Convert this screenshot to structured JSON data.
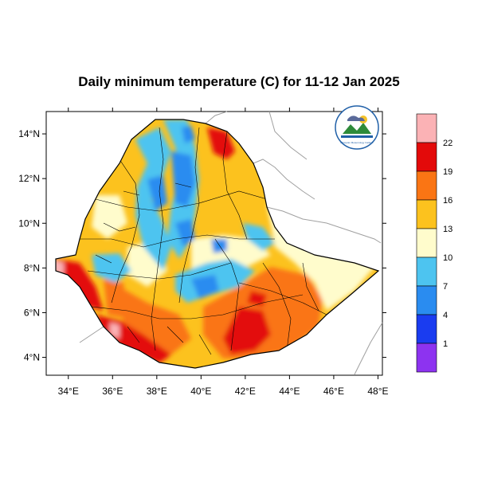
{
  "title": "Daily minimum temperature (C) for 11-12 Jan 2025",
  "logo": {
    "name": "ethiopian-meteorology-institute-logo",
    "text": "Ethiopian Meteorology Institute"
  },
  "map": {
    "region": "Ethiopia",
    "x_ticks": [
      "34°E",
      "36°E",
      "38°E",
      "40°E",
      "42°E",
      "44°E",
      "46°E",
      "48°E"
    ],
    "y_ticks": [
      "4°N",
      "6°N",
      "8°N",
      "10°N",
      "12°N",
      "14°N"
    ],
    "lon_range": [
      33,
      48.2
    ],
    "lat_range": [
      3.2,
      15
    ]
  },
  "colorbar": {
    "labels": [
      "1",
      "4",
      "7",
      "10",
      "13",
      "16",
      "19",
      "22"
    ],
    "colors": [
      "#8d33f0",
      "#1a3cf0",
      "#2a8cf0",
      "#4dc4f0",
      "#fffccc",
      "#fcc21e",
      "#fa7514",
      "#e30a0a",
      "#fbb2b5"
    ]
  },
  "colors": {
    "neighbor_border": "#a0a0a0",
    "region_border": "#000000"
  }
}
